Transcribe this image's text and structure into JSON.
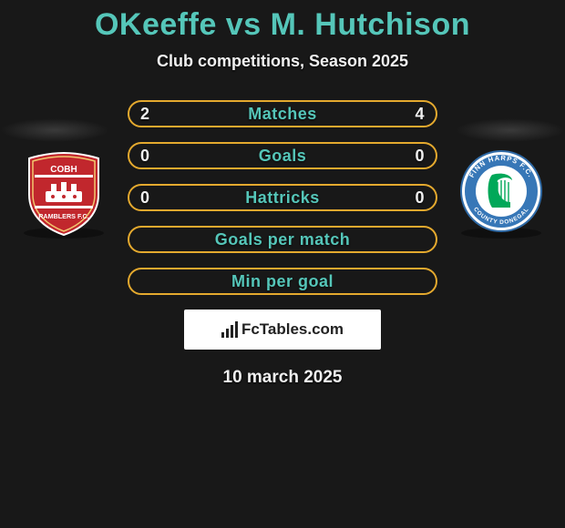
{
  "header": {
    "title": "OKeeffe vs M. Hutchison",
    "title_color": "#55c6b9",
    "subtitle": "Club competitions, Season 2025"
  },
  "colors": {
    "bar_fill": "#181818",
    "bar_border": "#e4a92e",
    "bar_label": "#55c6b9",
    "text": "#f5f5f5",
    "background": "#181818"
  },
  "bars": [
    {
      "label": "Matches",
      "left": "2",
      "right": "4"
    },
    {
      "label": "Goals",
      "left": "0",
      "right": "0"
    },
    {
      "label": "Hattricks",
      "left": "0",
      "right": "0"
    },
    {
      "label": "Goals per match",
      "left": "",
      "right": ""
    },
    {
      "label": "Min per goal",
      "left": "",
      "right": ""
    }
  ],
  "left_badge": {
    "name": "Cobh Ramblers FC",
    "shield_color": "#c1272d",
    "accent_color": "#ffffff",
    "band_text_top": "COBH",
    "band_text_bottom": "RAMBLERS F.C."
  },
  "right_badge": {
    "name": "Finn Harps FC",
    "ring_color": "#3777b7",
    "center_color": "#ffffff",
    "harp_color": "#00a859",
    "ring_text_top": "FINN HARPS F.C.",
    "ring_text_bottom": "COUNTY DONEGAL"
  },
  "footer": {
    "brand": "FcTables.com",
    "date": "10 march 2025"
  }
}
